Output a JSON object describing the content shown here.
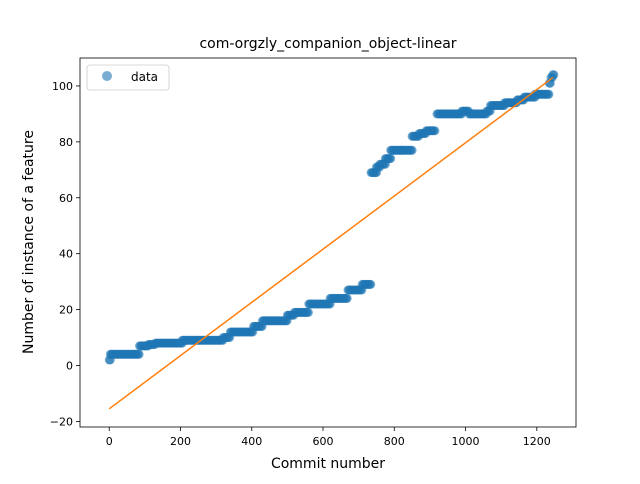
{
  "chart_data": {
    "type": "scatter",
    "title": "com-orgzly_companion_object-linear",
    "xlabel": "Commit number",
    "ylabel": "Number of instance of a feature",
    "xlim": [
      -82,
      1310
    ],
    "ylim": [
      -22,
      110
    ],
    "x_ticks": [
      0,
      200,
      400,
      600,
      800,
      1000,
      1200
    ],
    "y_ticks": [
      -20,
      0,
      20,
      40,
      60,
      80,
      100
    ],
    "grid": false,
    "legend": {
      "placement": "upper-left",
      "entries": [
        "data"
      ]
    },
    "colors": {
      "data": "#1f77b4",
      "fit": "#ff7f0e"
    },
    "series": [
      {
        "name": "data",
        "kind": "scatter",
        "segments": [
          {
            "x": [
              0,
              3
            ],
            "y": 2
          },
          {
            "x": [
              3,
              85
            ],
            "y": 4
          },
          {
            "x": [
              85,
              110
            ],
            "y": 7
          },
          {
            "x": [
              110,
              130
            ],
            "y": 7.5
          },
          {
            "x": [
              130,
              205
            ],
            "y": 8
          },
          {
            "x": [
              205,
              320
            ],
            "y": 9
          },
          {
            "x": [
              320,
              340
            ],
            "y": 10
          },
          {
            "x": [
              340,
              405
            ],
            "y": 12
          },
          {
            "x": [
              405,
              430
            ],
            "y": 14
          },
          {
            "x": [
              430,
              500
            ],
            "y": 16
          },
          {
            "x": [
              500,
              520
            ],
            "y": 18
          },
          {
            "x": [
              520,
              560
            ],
            "y": 19
          },
          {
            "x": [
              560,
              620
            ],
            "y": 22
          },
          {
            "x": [
              620,
              670
            ],
            "y": 24
          },
          {
            "x": [
              670,
              710
            ],
            "y": 27
          },
          {
            "x": [
              710,
              735
            ],
            "y": 29
          },
          {
            "x": [
              735,
              750
            ],
            "y": 69
          },
          {
            "x": [
              750,
              760
            ],
            "y": 71
          },
          {
            "x": [
              760,
              775
            ],
            "y": 72
          },
          {
            "x": [
              775,
              790
            ],
            "y": 74
          },
          {
            "x": [
              790,
              820
            ],
            "y": 77
          },
          {
            "x": [
              820,
              850
            ],
            "y": 77
          },
          {
            "x": [
              850,
              870
            ],
            "y": 82
          },
          {
            "x": [
              870,
              890
            ],
            "y": 83
          },
          {
            "x": [
              890,
              915
            ],
            "y": 84
          },
          {
            "x": [
              920,
              990
            ],
            "y": 90
          },
          {
            "x": [
              990,
              1010
            ],
            "y": 91
          },
          {
            "x": [
              1010,
              1060
            ],
            "y": 90
          },
          {
            "x": [
              1060,
              1070
            ],
            "y": 91
          },
          {
            "x": [
              1070,
              1110
            ],
            "y": 93
          },
          {
            "x": [
              1110,
              1145
            ],
            "y": 94
          },
          {
            "x": [
              1145,
              1165
            ],
            "y": 95
          },
          {
            "x": [
              1165,
              1195
            ],
            "y": 96
          },
          {
            "x": [
              1195,
              1235
            ],
            "y": 97
          },
          {
            "x": [
              1235,
              1240
            ],
            "y": 101
          },
          {
            "x": [
              1240,
              1245
            ],
            "y": 103
          },
          {
            "x": [
              1245,
              1248
            ],
            "y": 104
          }
        ]
      },
      {
        "kind": "line",
        "x": [
          0,
          1245
        ],
        "y": [
          -15.5,
          103
        ]
      }
    ]
  }
}
